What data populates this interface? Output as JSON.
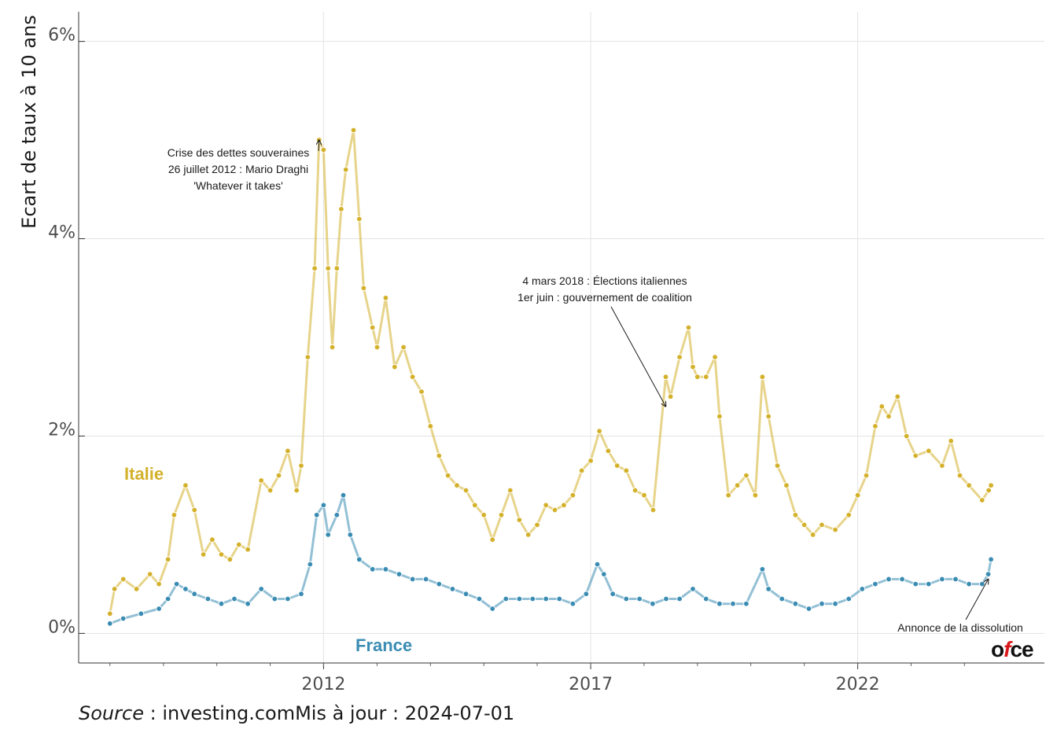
{
  "chart_data": {
    "type": "line",
    "title": "",
    "xlabel": "",
    "ylabel": "Ecart de taux à 10 ans",
    "x_ticks": [
      "2012",
      "2017",
      "2022"
    ],
    "y_ticks": [
      "0%",
      "2%",
      "4%",
      "6%"
    ],
    "xlim": [
      "2007-06-01",
      "2025-07-01"
    ],
    "ylim": [
      -0.3,
      6.3
    ],
    "grid": true,
    "legend": "none (direct labels)",
    "series": [
      {
        "name": "Italie",
        "color": "#d4b12b",
        "points": [
          [
            "2008-01-01",
            0.2
          ],
          [
            "2008-02-01",
            0.45
          ],
          [
            "2008-04-01",
            0.55
          ],
          [
            "2008-07-01",
            0.45
          ],
          [
            "2008-10-01",
            0.6
          ],
          [
            "2008-12-01",
            0.5
          ],
          [
            "2009-02-01",
            0.75
          ],
          [
            "2009-03-15",
            1.2
          ],
          [
            "2009-06-01",
            1.5
          ],
          [
            "2009-08-01",
            1.25
          ],
          [
            "2009-10-01",
            0.8
          ],
          [
            "2009-12-01",
            0.95
          ],
          [
            "2010-02-01",
            0.8
          ],
          [
            "2010-04-01",
            0.75
          ],
          [
            "2010-06-01",
            0.9
          ],
          [
            "2010-08-01",
            0.85
          ],
          [
            "2010-11-01",
            1.55
          ],
          [
            "2011-01-01",
            1.45
          ],
          [
            "2011-03-01",
            1.6
          ],
          [
            "2011-05-01",
            1.85
          ],
          [
            "2011-07-01",
            1.45
          ],
          [
            "2011-08-01",
            1.7
          ],
          [
            "2011-09-15",
            2.8
          ],
          [
            "2011-11-01",
            3.7
          ],
          [
            "2011-12-01",
            5.0
          ],
          [
            "2012-01-01",
            4.9
          ],
          [
            "2012-02-01",
            3.7
          ],
          [
            "2012-03-01",
            2.9
          ],
          [
            "2012-04-01",
            3.7
          ],
          [
            "2012-05-01",
            4.3
          ],
          [
            "2012-06-01",
            4.7
          ],
          [
            "2012-07-24",
            5.1
          ],
          [
            "2012-09-01",
            4.2
          ],
          [
            "2012-10-01",
            3.5
          ],
          [
            "2012-12-01",
            3.1
          ],
          [
            "2013-01-01",
            2.9
          ],
          [
            "2013-03-01",
            3.4
          ],
          [
            "2013-05-01",
            2.7
          ],
          [
            "2013-07-01",
            2.9
          ],
          [
            "2013-09-01",
            2.6
          ],
          [
            "2013-11-01",
            2.45
          ],
          [
            "2014-01-01",
            2.1
          ],
          [
            "2014-03-01",
            1.8
          ],
          [
            "2014-05-01",
            1.6
          ],
          [
            "2014-07-01",
            1.5
          ],
          [
            "2014-09-01",
            1.45
          ],
          [
            "2014-11-01",
            1.3
          ],
          [
            "2015-01-01",
            1.2
          ],
          [
            "2015-03-01",
            0.95
          ],
          [
            "2015-05-01",
            1.2
          ],
          [
            "2015-07-01",
            1.45
          ],
          [
            "2015-09-01",
            1.15
          ],
          [
            "2015-11-01",
            1.0
          ],
          [
            "2016-01-01",
            1.1
          ],
          [
            "2016-03-01",
            1.3
          ],
          [
            "2016-05-01",
            1.25
          ],
          [
            "2016-07-01",
            1.3
          ],
          [
            "2016-09-01",
            1.4
          ],
          [
            "2016-11-01",
            1.65
          ],
          [
            "2017-01-01",
            1.75
          ],
          [
            "2017-03-01",
            2.05
          ],
          [
            "2017-05-01",
            1.85
          ],
          [
            "2017-07-01",
            1.7
          ],
          [
            "2017-09-01",
            1.65
          ],
          [
            "2017-11-01",
            1.45
          ],
          [
            "2018-01-01",
            1.4
          ],
          [
            "2018-03-04",
            1.25
          ],
          [
            "2018-05-29",
            2.6
          ],
          [
            "2018-07-01",
            2.4
          ],
          [
            "2018-09-01",
            2.8
          ],
          [
            "2018-11-01",
            3.1
          ],
          [
            "2018-12-01",
            2.7
          ],
          [
            "2019-01-01",
            2.6
          ],
          [
            "2019-03-01",
            2.6
          ],
          [
            "2019-05-01",
            2.8
          ],
          [
            "2019-06-01",
            2.2
          ],
          [
            "2019-08-01",
            1.4
          ],
          [
            "2019-10-01",
            1.5
          ],
          [
            "2019-12-01",
            1.6
          ],
          [
            "2020-02-01",
            1.4
          ],
          [
            "2020-03-20",
            2.6
          ],
          [
            "2020-05-01",
            2.2
          ],
          [
            "2020-07-01",
            1.7
          ],
          [
            "2020-09-01",
            1.5
          ],
          [
            "2020-11-01",
            1.2
          ],
          [
            "2021-01-01",
            1.1
          ],
          [
            "2021-03-01",
            1.0
          ],
          [
            "2021-05-01",
            1.1
          ],
          [
            "2021-08-01",
            1.05
          ],
          [
            "2021-11-01",
            1.2
          ],
          [
            "2022-01-01",
            1.4
          ],
          [
            "2022-03-01",
            1.6
          ],
          [
            "2022-05-01",
            2.1
          ],
          [
            "2022-06-15",
            2.3
          ],
          [
            "2022-08-01",
            2.2
          ],
          [
            "2022-10-01",
            2.4
          ],
          [
            "2022-12-01",
            2.0
          ],
          [
            "2023-02-01",
            1.8
          ],
          [
            "2023-05-01",
            1.85
          ],
          [
            "2023-08-01",
            1.7
          ],
          [
            "2023-10-01",
            1.95
          ],
          [
            "2023-12-01",
            1.6
          ],
          [
            "2024-02-01",
            1.5
          ],
          [
            "2024-05-01",
            1.35
          ],
          [
            "2024-06-15",
            1.45
          ],
          [
            "2024-07-01",
            1.5
          ]
        ]
      },
      {
        "name": "France",
        "color": "#3a8cb3",
        "points": [
          [
            "2008-01-01",
            0.1
          ],
          [
            "2008-04-01",
            0.15
          ],
          [
            "2008-08-01",
            0.2
          ],
          [
            "2008-12-01",
            0.25
          ],
          [
            "2009-02-01",
            0.35
          ],
          [
            "2009-04-01",
            0.5
          ],
          [
            "2009-06-01",
            0.45
          ],
          [
            "2009-08-01",
            0.4
          ],
          [
            "2009-11-01",
            0.35
          ],
          [
            "2010-02-01",
            0.3
          ],
          [
            "2010-05-01",
            0.35
          ],
          [
            "2010-08-01",
            0.3
          ],
          [
            "2010-11-01",
            0.45
          ],
          [
            "2011-02-01",
            0.35
          ],
          [
            "2011-05-01",
            0.35
          ],
          [
            "2011-08-01",
            0.4
          ],
          [
            "2011-10-01",
            0.7
          ],
          [
            "2011-11-15",
            1.2
          ],
          [
            "2012-01-01",
            1.3
          ],
          [
            "2012-02-01",
            1.0
          ],
          [
            "2012-04-01",
            1.2
          ],
          [
            "2012-05-15",
            1.4
          ],
          [
            "2012-07-01",
            1.0
          ],
          [
            "2012-09-01",
            0.75
          ],
          [
            "2012-12-01",
            0.65
          ],
          [
            "2013-03-01",
            0.65
          ],
          [
            "2013-06-01",
            0.6
          ],
          [
            "2013-09-01",
            0.55
          ],
          [
            "2013-12-01",
            0.55
          ],
          [
            "2014-03-01",
            0.5
          ],
          [
            "2014-06-01",
            0.45
          ],
          [
            "2014-09-01",
            0.4
          ],
          [
            "2014-12-01",
            0.35
          ],
          [
            "2015-03-01",
            0.25
          ],
          [
            "2015-06-01",
            0.35
          ],
          [
            "2015-09-01",
            0.35
          ],
          [
            "2015-12-01",
            0.35
          ],
          [
            "2016-03-01",
            0.35
          ],
          [
            "2016-06-01",
            0.35
          ],
          [
            "2016-09-01",
            0.3
          ],
          [
            "2016-12-01",
            0.4
          ],
          [
            "2017-02-15",
            0.7
          ],
          [
            "2017-04-01",
            0.6
          ],
          [
            "2017-06-01",
            0.4
          ],
          [
            "2017-09-01",
            0.35
          ],
          [
            "2017-12-01",
            0.35
          ],
          [
            "2018-03-01",
            0.3
          ],
          [
            "2018-06-01",
            0.35
          ],
          [
            "2018-09-01",
            0.35
          ],
          [
            "2018-12-01",
            0.45
          ],
          [
            "2019-03-01",
            0.35
          ],
          [
            "2019-06-01",
            0.3
          ],
          [
            "2019-09-01",
            0.3
          ],
          [
            "2019-12-01",
            0.3
          ],
          [
            "2020-03-20",
            0.65
          ],
          [
            "2020-05-01",
            0.45
          ],
          [
            "2020-08-01",
            0.35
          ],
          [
            "2020-11-01",
            0.3
          ],
          [
            "2021-02-01",
            0.25
          ],
          [
            "2021-05-01",
            0.3
          ],
          [
            "2021-08-01",
            0.3
          ],
          [
            "2021-11-01",
            0.35
          ],
          [
            "2022-02-01",
            0.45
          ],
          [
            "2022-05-01",
            0.5
          ],
          [
            "2022-08-01",
            0.55
          ],
          [
            "2022-11-01",
            0.55
          ],
          [
            "2023-02-01",
            0.5
          ],
          [
            "2023-05-01",
            0.5
          ],
          [
            "2023-08-01",
            0.55
          ],
          [
            "2023-11-01",
            0.55
          ],
          [
            "2024-02-01",
            0.5
          ],
          [
            "2024-05-01",
            0.5
          ],
          [
            "2024-06-12",
            0.6
          ],
          [
            "2024-07-01",
            0.75
          ]
        ]
      }
    ],
    "series_labels": [
      {
        "text": "Italie",
        "series": 0
      },
      {
        "text": "France",
        "series": 1
      }
    ],
    "annotations": [
      {
        "lines": [
          "Crise des dettes souveraines",
          "26 juillet 2012 : Mario Draghi",
          "'Whatever it takes'"
        ],
        "target": [
          "2011-12-01",
          5.0
        ]
      },
      {
        "lines": [
          "4 mars 2018 : Élections italiennes",
          "1er juin : gouvernement de coalition"
        ],
        "target": [
          "2018-05-29",
          2.3
        ]
      },
      {
        "lines": [
          "Annonce de la dissolution"
        ],
        "target": [
          "2024-06-12",
          0.55
        ]
      }
    ]
  },
  "caption": {
    "source_label": "Source",
    "source_text": " : investing.comMis à jour : 2024-07-01"
  },
  "logo": {
    "pre": "o",
    "mid": "f",
    "post": "ce"
  }
}
